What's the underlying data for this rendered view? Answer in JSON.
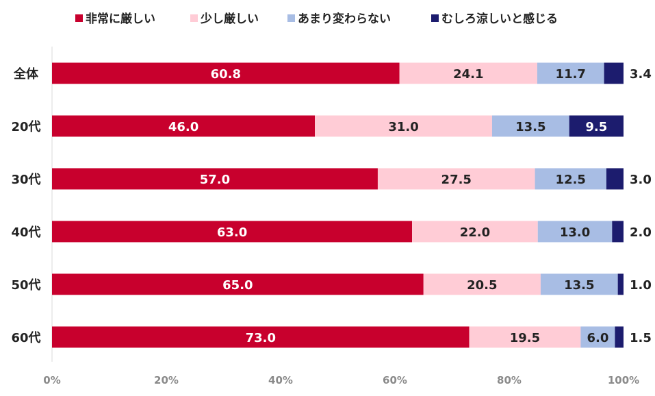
{
  "chart_data": {
    "type": "bar",
    "orientation": "horizontal",
    "stacked": true,
    "percent_stacked": true,
    "categories": [
      "全体",
      "20代",
      "30代",
      "40代",
      "50代",
      "60代"
    ],
    "series": [
      {
        "name": "非常に厳しい",
        "color": "#c8002d",
        "label_color": "#ffffff",
        "values": [
          60.8,
          46.0,
          57.0,
          63.0,
          65.0,
          73.0
        ],
        "labels": [
          "60.8",
          "46.0",
          "57.0",
          "63.0",
          "65.0",
          "73.0"
        ]
      },
      {
        "name": "少し厳しい",
        "color": "#ffccd6",
        "label_color": "#222222",
        "values": [
          24.1,
          31.0,
          27.5,
          22.0,
          20.5,
          19.5
        ],
        "labels": [
          "24.1",
          "31.0",
          "27.5",
          "22.0",
          "20.5",
          "19.5"
        ]
      },
      {
        "name": "あまり変わらない",
        "color": "#a8bde4",
        "label_color": "#222222",
        "values": [
          11.7,
          13.5,
          12.5,
          13.0,
          13.5,
          6.0
        ],
        "labels": [
          "11.7",
          "13.5",
          "12.5",
          "13.0",
          "13.5",
          "6.0"
        ]
      },
      {
        "name": "むしろ涼しいと感じる",
        "color": "#1c1c6e",
        "label_color": "#ffffff",
        "outside_label_color": "#222222",
        "values": [
          3.4,
          9.5,
          3.0,
          2.0,
          1.0,
          1.5
        ],
        "labels": [
          "3.4",
          "9.5",
          "3.0",
          "2.0",
          "1.0",
          "1.5"
        ]
      }
    ],
    "xlim": [
      0,
      100
    ],
    "x_ticks": [
      "0%",
      "20%",
      "40%",
      "60%",
      "80%",
      "100%"
    ],
    "grid": false,
    "legend_position": "top"
  }
}
